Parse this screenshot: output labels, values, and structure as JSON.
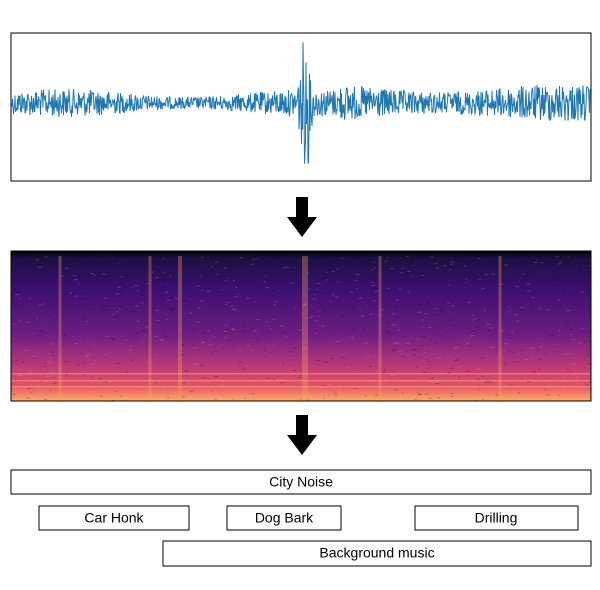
{
  "boxes": [
    {
      "label": "City Noise"
    },
    {
      "label": "Car Honk"
    },
    {
      "label": "Dog Bark"
    },
    {
      "label": "Drilling"
    },
    {
      "label": "Background music"
    }
  ]
}
